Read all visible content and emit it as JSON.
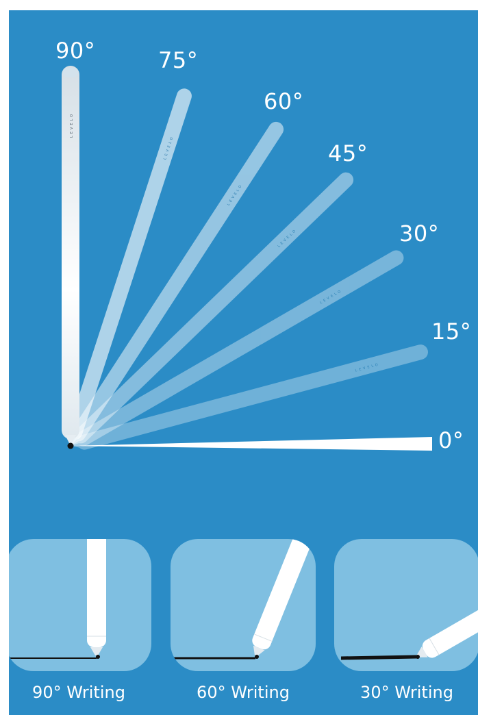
{
  "diagram": {
    "brand": "LEVELO",
    "angles": [
      "90°",
      "75°",
      "60°",
      "45°",
      "30°",
      "15°",
      "0°"
    ]
  },
  "examples": [
    {
      "caption": "90° Writing"
    },
    {
      "caption": "60° Writing"
    },
    {
      "caption": "30° Writing"
    }
  ],
  "colors": {
    "background": "#2b8cc6",
    "panel": "#7fbfe1",
    "pen_body": "#eef4f8",
    "ink": "#111111"
  }
}
